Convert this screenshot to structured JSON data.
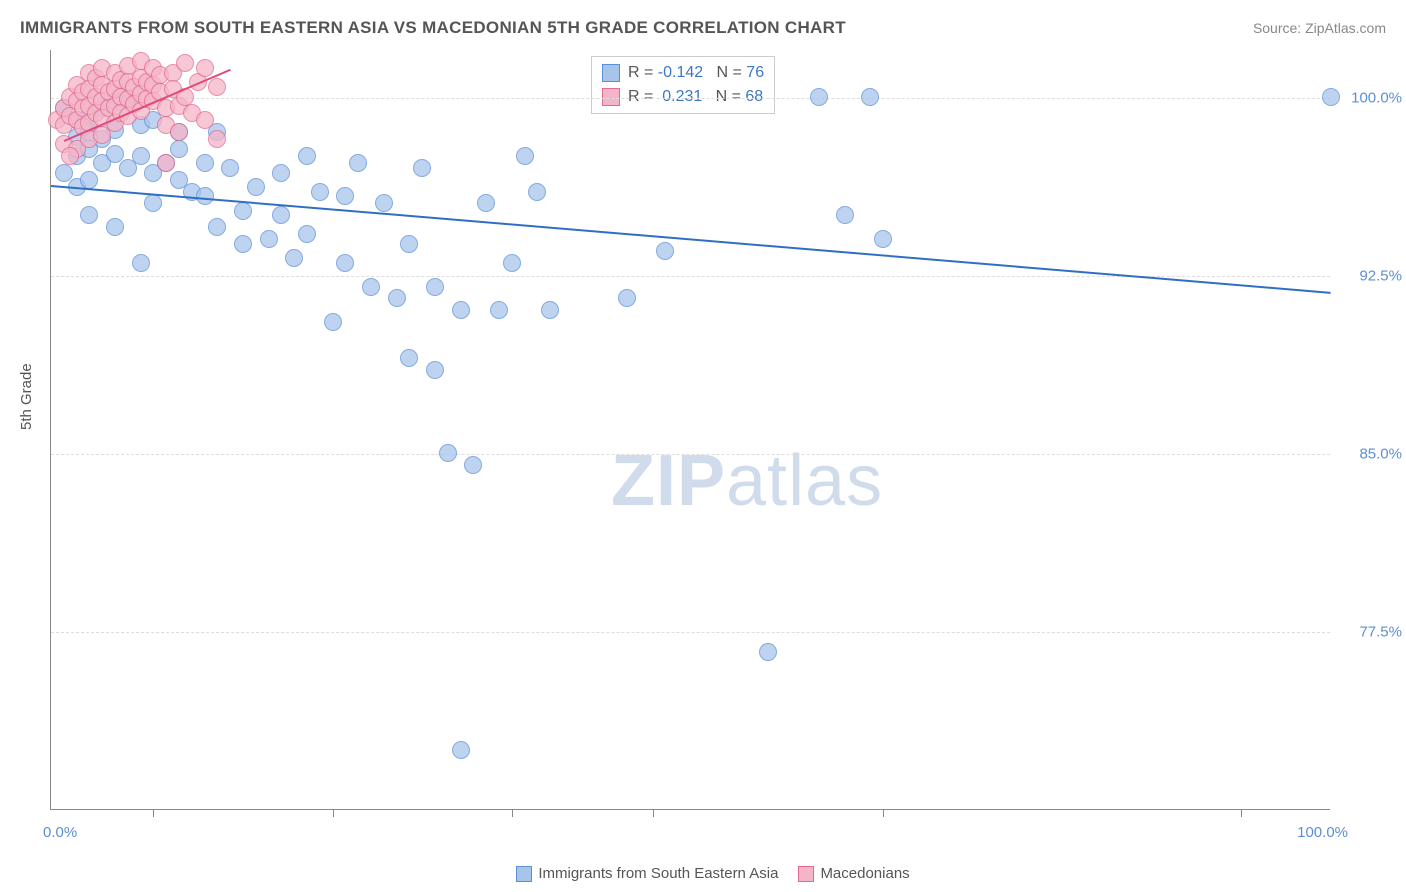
{
  "title": "IMMIGRANTS FROM SOUTH EASTERN ASIA VS MACEDONIAN 5TH GRADE CORRELATION CHART",
  "source": "Source: ZipAtlas.com",
  "ylabel": "5th Grade",
  "watermark_a": "ZIP",
  "watermark_b": "atlas",
  "chart": {
    "type": "scatter",
    "xlim": [
      0,
      100
    ],
    "ylim": [
      70,
      102
    ],
    "x_min_label": "0.0%",
    "x_max_label": "100.0%",
    "yticks": [
      {
        "v": 77.5,
        "label": "77.5%"
      },
      {
        "v": 85.0,
        "label": "85.0%"
      },
      {
        "v": 92.5,
        "label": "92.5%"
      },
      {
        "v": 100.0,
        "label": "100.0%"
      }
    ],
    "xticks": [
      8,
      22,
      36,
      47,
      65,
      93
    ],
    "background_color": "#ffffff",
    "grid_color": "#dddddd",
    "series": [
      {
        "name": "Immigrants from South Eastern Asia",
        "fill": "#a7c5eb",
        "stroke": "#5b8fd6",
        "opacity": 0.75,
        "marker_radius": 9,
        "R": "-0.142",
        "N": "76",
        "trend": {
          "x1": 0,
          "y1": 96.3,
          "x2": 100,
          "y2": 91.8,
          "color": "#2f6fc1",
          "width": 2
        },
        "points": [
          [
            1,
            99.5
          ],
          [
            2,
            99
          ],
          [
            2,
            98.3
          ],
          [
            3,
            99.2
          ],
          [
            3,
            98.5
          ],
          [
            4,
            99.5
          ],
          [
            4,
            98.2
          ],
          [
            5,
            99.8
          ],
          [
            5,
            98.6
          ],
          [
            6,
            99.9
          ],
          [
            2,
            97.5
          ],
          [
            3,
            97.8
          ],
          [
            4,
            97.2
          ],
          [
            5,
            97.6
          ],
          [
            6,
            97.0
          ],
          [
            7,
            98.8
          ],
          [
            7,
            97.5
          ],
          [
            8,
            99.0
          ],
          [
            8,
            96.8
          ],
          [
            9,
            97.2
          ],
          [
            1,
            96.8
          ],
          [
            2,
            96.2
          ],
          [
            3,
            96.5
          ],
          [
            8,
            95.5
          ],
          [
            10,
            97.8
          ],
          [
            10,
            96.5
          ],
          [
            11,
            96.0
          ],
          [
            12,
            97.2
          ],
          [
            12,
            95.8
          ],
          [
            13,
            98.5
          ],
          [
            13,
            94.5
          ],
          [
            14,
            97.0
          ],
          [
            15,
            95.2
          ],
          [
            15,
            93.8
          ],
          [
            16,
            96.2
          ],
          [
            17,
            94.0
          ],
          [
            18,
            96.8
          ],
          [
            18,
            95.0
          ],
          [
            19,
            93.2
          ],
          [
            20,
            97.5
          ],
          [
            20,
            94.2
          ],
          [
            21,
            96.0
          ],
          [
            22,
            90.5
          ],
          [
            23,
            95.8
          ],
          [
            23,
            93.0
          ],
          [
            24,
            97.2
          ],
          [
            25,
            92.0
          ],
          [
            26,
            95.5
          ],
          [
            27,
            91.5
          ],
          [
            28,
            93.8
          ],
          [
            28,
            89.0
          ],
          [
            29,
            97.0
          ],
          [
            30,
            88.5
          ],
          [
            30,
            92.0
          ],
          [
            31,
            85.0
          ],
          [
            32,
            91.0
          ],
          [
            32,
            72.5
          ],
          [
            33,
            84.5
          ],
          [
            34,
            95.5
          ],
          [
            35,
            91.0
          ],
          [
            36,
            93.0
          ],
          [
            37,
            97.5
          ],
          [
            38,
            96.0
          ],
          [
            39,
            91.0
          ],
          [
            45,
            91.5
          ],
          [
            48,
            93.5
          ],
          [
            56,
            76.6
          ],
          [
            60,
            100
          ],
          [
            62,
            95.0
          ],
          [
            64,
            100
          ],
          [
            65,
            94.0
          ],
          [
            100,
            100
          ],
          [
            3,
            95.0
          ],
          [
            5,
            94.5
          ],
          [
            7,
            93.0
          ],
          [
            10,
            98.5
          ]
        ]
      },
      {
        "name": "Macedonians",
        "fill": "#f5b5c8",
        "stroke": "#e26a8f",
        "opacity": 0.75,
        "marker_radius": 9,
        "R": "0.231",
        "N": "68",
        "trend": {
          "x1": 1,
          "y1": 98.2,
          "x2": 14,
          "y2": 101.2,
          "color": "#e04b7a",
          "width": 2
        },
        "points": [
          [
            0.5,
            99.0
          ],
          [
            1,
            99.5
          ],
          [
            1,
            98.8
          ],
          [
            1.5,
            100
          ],
          [
            1.5,
            99.2
          ],
          [
            2,
            100.5
          ],
          [
            2,
            99.8
          ],
          [
            2,
            99.0
          ],
          [
            2.5,
            100.2
          ],
          [
            2.5,
            99.5
          ],
          [
            2.5,
            98.7
          ],
          [
            3,
            101
          ],
          [
            3,
            100.3
          ],
          [
            3,
            99.6
          ],
          [
            3,
            98.9
          ],
          [
            3.5,
            100.8
          ],
          [
            3.5,
            100.0
          ],
          [
            3.5,
            99.3
          ],
          [
            4,
            101.2
          ],
          [
            4,
            100.5
          ],
          [
            4,
            99.8
          ],
          [
            4,
            99.1
          ],
          [
            4.5,
            100.2
          ],
          [
            4.5,
            99.5
          ],
          [
            5,
            101
          ],
          [
            5,
            100.3
          ],
          [
            5,
            99.6
          ],
          [
            5,
            98.9
          ],
          [
            5.5,
            100.7
          ],
          [
            5.5,
            100.0
          ],
          [
            5.5,
            99.3
          ],
          [
            6,
            101.3
          ],
          [
            6,
            100.6
          ],
          [
            6,
            99.9
          ],
          [
            6,
            99.2
          ],
          [
            6.5,
            100.4
          ],
          [
            6.5,
            99.7
          ],
          [
            7,
            101.5
          ],
          [
            7,
            100.8
          ],
          [
            7,
            100.1
          ],
          [
            7,
            99.4
          ],
          [
            7.5,
            100.6
          ],
          [
            7.5,
            99.9
          ],
          [
            8,
            101.2
          ],
          [
            8,
            100.5
          ],
          [
            8,
            99.8
          ],
          [
            8.5,
            100.9
          ],
          [
            8.5,
            100.2
          ],
          [
            9,
            99.5
          ],
          [
            9,
            98.8
          ],
          [
            9.5,
            101
          ],
          [
            9.5,
            100.3
          ],
          [
            10,
            99.6
          ],
          [
            10,
            98.5
          ],
          [
            10.5,
            101.4
          ],
          [
            10.5,
            100.0
          ],
          [
            11,
            99.3
          ],
          [
            11.5,
            100.6
          ],
          [
            12,
            101.2
          ],
          [
            12,
            99.0
          ],
          [
            13,
            100.4
          ],
          [
            13,
            98.2
          ],
          [
            1,
            98.0
          ],
          [
            2,
            97.8
          ],
          [
            3,
            98.2
          ],
          [
            4,
            98.4
          ],
          [
            9,
            97.2
          ],
          [
            1.5,
            97.5
          ]
        ]
      }
    ]
  },
  "bottom_legend": {
    "a_label": "Immigrants from South Eastern Asia",
    "b_label": "Macedonians"
  }
}
